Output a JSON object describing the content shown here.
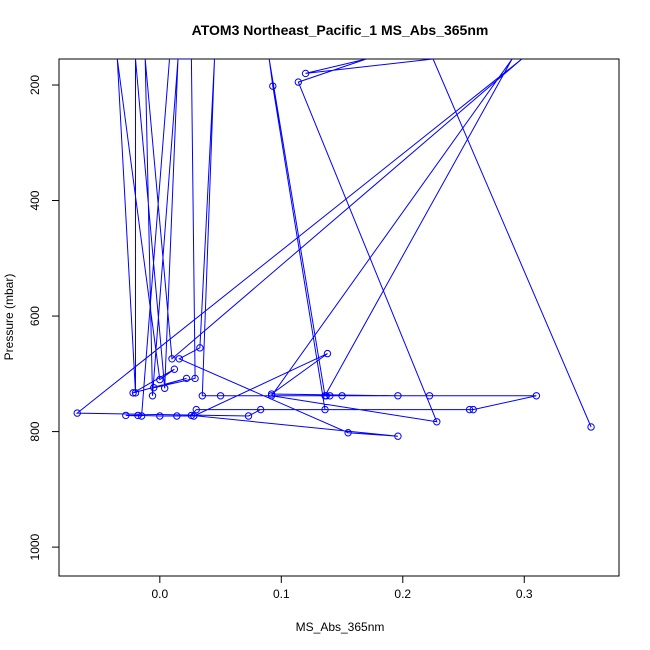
{
  "chart_data": {
    "type": "line",
    "title": "ATOM3 Northeast_Pacific_1 MS_Abs_365nm",
    "xlabel": "MS_Abs_365nm",
    "ylabel": "Pressure (mbar)",
    "xlim": [
      -0.083,
      0.378
    ],
    "ylim": [
      1050,
      155
    ],
    "y_reversed": true,
    "x_ticks": [
      0.0,
      0.1,
      0.2,
      0.3
    ],
    "x_tick_labels": [
      "0.0",
      "0.1",
      "0.2",
      "0.3"
    ],
    "y_ticks": [
      200,
      400,
      600,
      800,
      1000
    ],
    "y_tick_labels": [
      "200",
      "400",
      "600",
      "800",
      "1000"
    ],
    "grid": false,
    "series": [
      {
        "color": "#0000ff",
        "marker": "open-circle",
        "points": [
          [
            0.355,
            792
          ],
          [
            0.225,
            155
          ],
          [
            0.12,
            180
          ],
          [
            0.17,
            155
          ],
          [
            0.114,
            195
          ],
          [
            0.228,
            783
          ],
          [
            0.092,
            738
          ],
          [
            0.29,
            155
          ],
          [
            0.136,
            738
          ],
          [
            0.09,
            155
          ],
          [
            0.093,
            202
          ],
          [
            0.136,
            762
          ],
          [
            0.255,
            762
          ],
          [
            0.03,
            762
          ],
          [
            0.026,
            772
          ],
          [
            0.196,
            808
          ],
          [
            0.155,
            802
          ],
          [
            0.016,
            674
          ],
          [
            0.033,
            655
          ],
          [
            0.045,
            155
          ],
          [
            0.035,
            738
          ],
          [
            0.31,
            738
          ],
          [
            0.258,
            762
          ],
          [
            0.083,
            762
          ],
          [
            0.073,
            773
          ],
          [
            -0.068,
            768
          ],
          [
            0.298,
            155
          ],
          [
            0.01,
            674
          ],
          [
            -0.012,
            155
          ],
          [
            -0.006,
            738
          ],
          [
            0.015,
            155
          ],
          [
            0.004,
            725
          ],
          [
            -0.02,
            155
          ],
          [
            -0.02,
            733
          ],
          [
            -0.035,
            155
          ],
          [
            0.0,
            710
          ],
          [
            0.012,
            692
          ],
          [
            -0.022,
            733
          ],
          [
            0.022,
            708
          ],
          [
            -0.005,
            724
          ],
          [
            0.029,
            708
          ],
          [
            0.026,
            155
          ],
          [
            0.008,
            155
          ],
          [
            -0.015,
            773
          ],
          [
            -0.028,
            772
          ],
          [
            -0.018,
            772
          ],
          [
            0.0,
            773
          ],
          [
            0.014,
            773
          ],
          [
            0.028,
            773
          ],
          [
            0.138,
            665
          ],
          [
            0.092,
            735
          ],
          [
            0.196,
            738
          ],
          [
            0.14,
            738
          ],
          [
            0.222,
            738
          ],
          [
            0.05,
            738
          ],
          [
            0.137,
            738
          ],
          [
            0.15,
            738
          ]
        ]
      }
    ]
  }
}
